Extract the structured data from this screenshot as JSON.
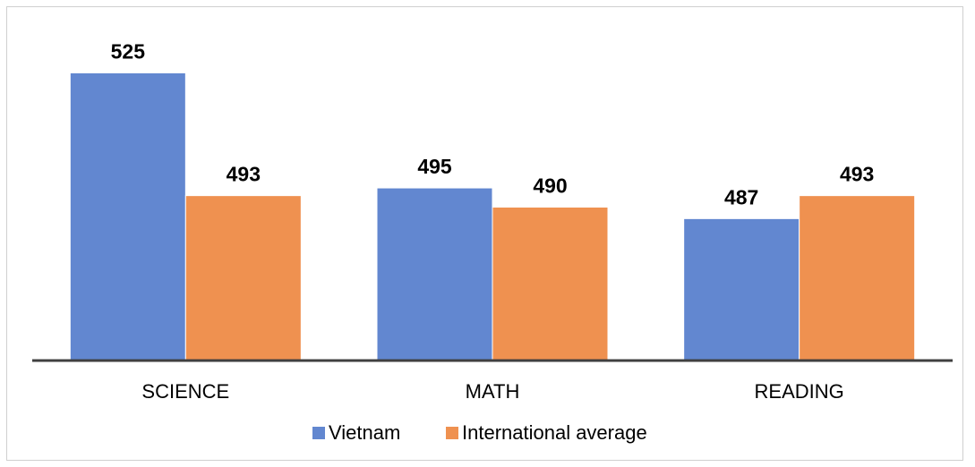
{
  "chart_data": {
    "type": "bar",
    "title": "",
    "xlabel": "",
    "ylabel": "",
    "categories": [
      "SCIENCE",
      "MATH",
      "READING"
    ],
    "series": [
      {
        "name": "Vietnam",
        "values": [
          525,
          495,
          487
        ],
        "color": "#6287d0"
      },
      {
        "name": "International average",
        "values": [
          493,
          490,
          493
        ],
        "color": "#ef9150"
      }
    ],
    "ylim": [
      450,
      530
    ],
    "grid": false,
    "legend": "bottom",
    "data_labels": true,
    "axis_color": "#404040"
  }
}
